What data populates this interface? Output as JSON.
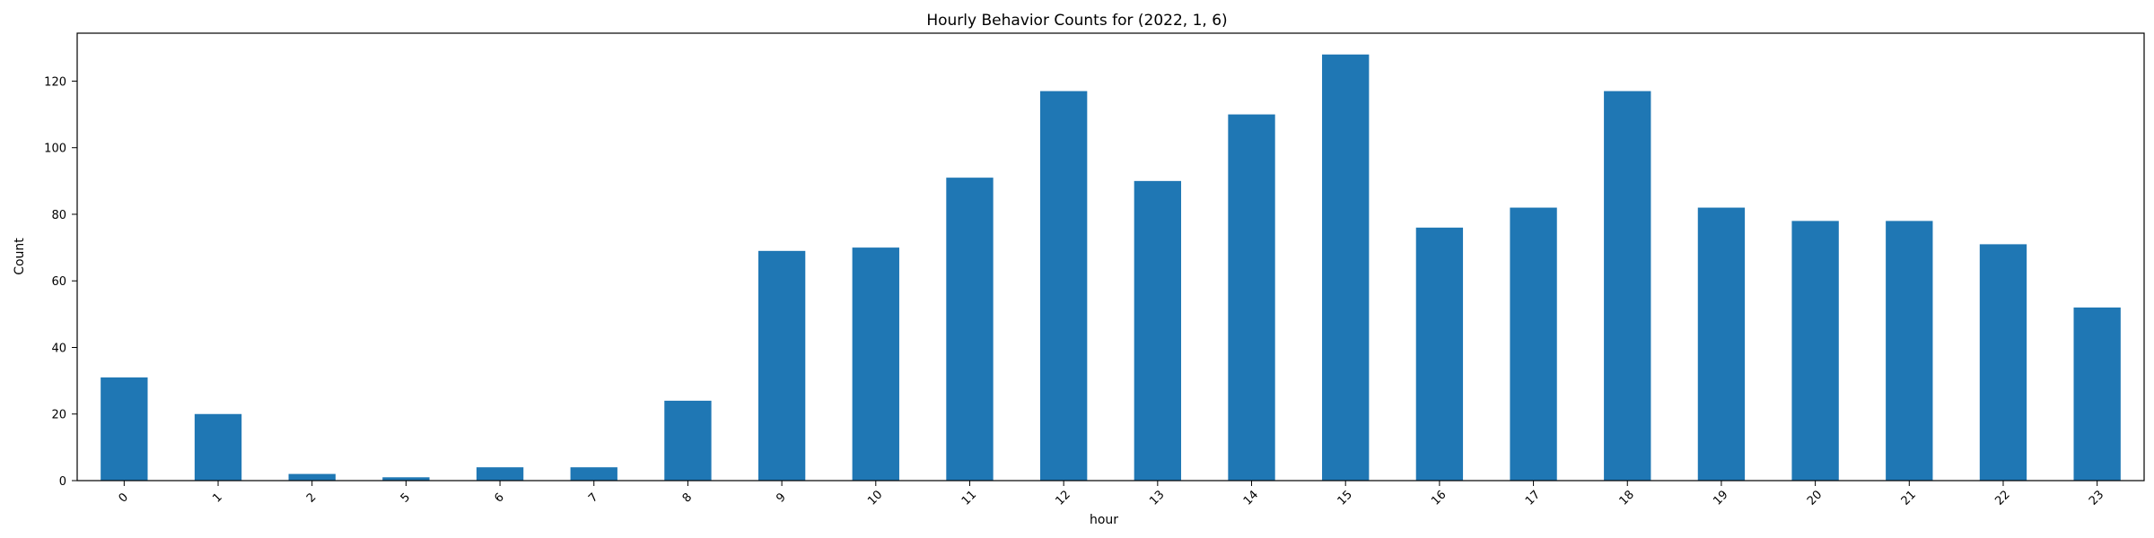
{
  "chart_data": {
    "type": "bar",
    "title": "Hourly Behavior Counts for (2022, 1, 6)",
    "xlabel": "hour",
    "ylabel": "Count",
    "categories": [
      "0",
      "1",
      "2",
      "5",
      "6",
      "7",
      "8",
      "9",
      "10",
      "11",
      "12",
      "13",
      "14",
      "15",
      "16",
      "17",
      "18",
      "19",
      "20",
      "21",
      "22",
      "23"
    ],
    "values": [
      31,
      20,
      2,
      1,
      4,
      4,
      24,
      69,
      70,
      91,
      117,
      90,
      110,
      128,
      76,
      82,
      117,
      82,
      78,
      78,
      71,
      52
    ],
    "yticks": [
      0,
      20,
      40,
      60,
      80,
      100,
      120
    ],
    "ylim": [
      0,
      134.4
    ],
    "grid": false,
    "legend": "none",
    "bar_color": "#1f77b4"
  }
}
